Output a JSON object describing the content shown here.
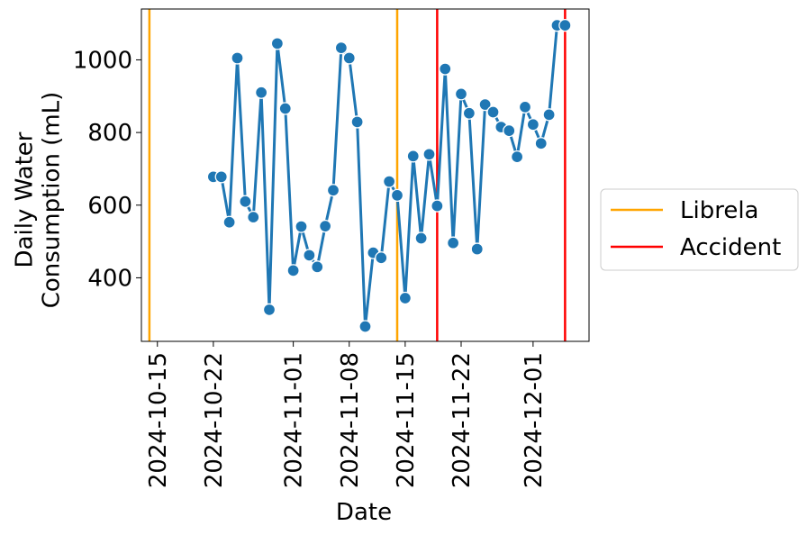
{
  "chart_data": {
    "type": "line",
    "title": "",
    "xlabel": "Date",
    "ylabel": "Daily Water\nConsumption (mL)",
    "x_axis_type": "date",
    "xlim": [
      "2024-10-13",
      "2024-12-08"
    ],
    "ylim": [
      225,
      1140
    ],
    "x_ticks": [
      "2024-10-15",
      "2024-10-22",
      "2024-11-01",
      "2024-11-08",
      "2024-11-15",
      "2024-11-22",
      "2024-12-01"
    ],
    "y_ticks": [
      400,
      600,
      800,
      1000
    ],
    "grid": false,
    "legend_position": "right",
    "series": [
      {
        "color": "#1f77b4",
        "marker": "circle",
        "x": [
          "2024-10-22",
          "2024-10-23",
          "2024-10-24",
          "2024-10-25",
          "2024-10-26",
          "2024-10-27",
          "2024-10-28",
          "2024-10-29",
          "2024-10-30",
          "2024-10-31",
          "2024-11-01",
          "2024-11-02",
          "2024-11-03",
          "2024-11-04",
          "2024-11-05",
          "2024-11-06",
          "2024-11-07",
          "2024-11-08",
          "2024-11-09",
          "2024-11-10",
          "2024-11-11",
          "2024-11-12",
          "2024-11-13",
          "2024-11-14",
          "2024-11-15",
          "2024-11-16",
          "2024-11-17",
          "2024-11-18",
          "2024-11-19",
          "2024-11-20",
          "2024-11-21",
          "2024-11-22",
          "2024-11-23",
          "2024-11-24",
          "2024-11-25",
          "2024-11-26",
          "2024-11-27",
          "2024-11-28",
          "2024-11-29",
          "2024-11-30",
          "2024-12-01",
          "2024-12-02",
          "2024-12-03",
          "2024-12-04",
          "2024-12-05"
        ],
        "y": [
          678,
          678,
          553,
          1005,
          610,
          567,
          910,
          312,
          1045,
          866,
          420,
          541,
          462,
          430,
          542,
          641,
          1033,
          1005,
          829,
          266,
          469,
          455,
          665,
          627,
          344,
          735,
          509,
          740,
          598,
          975,
          496,
          906,
          853,
          479,
          877,
          856,
          815,
          805,
          733,
          870,
          822,
          770,
          849,
          1095,
          1095
        ]
      }
    ],
    "vlines": [
      {
        "x": "2024-10-14",
        "label": "Librela",
        "color": "#ffa500"
      },
      {
        "x": "2024-11-14",
        "label": "Librela",
        "color": "#ffa500"
      },
      {
        "x": "2024-11-19",
        "label": "Accident",
        "color": "#ff0000"
      },
      {
        "x": "2024-12-05",
        "label": "Accident",
        "color": "#ff0000"
      }
    ],
    "legend": [
      {
        "label": "Librela",
        "color": "#ffa500"
      },
      {
        "label": "Accident",
        "color": "#ff0000"
      }
    ]
  }
}
